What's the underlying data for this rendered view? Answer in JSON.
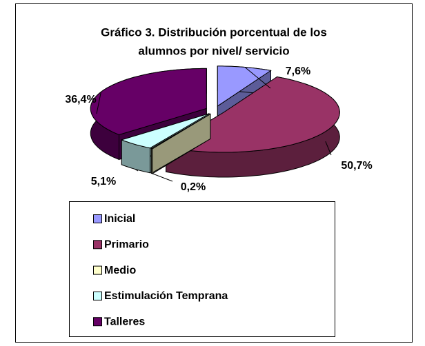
{
  "chart_data": {
    "type": "pie",
    "title": "Gráfico 3. Distribución porcentual de los alumnos por nivel/ servicio",
    "title_lines": [
      "Gráfico 3. Distribución porcentual de los",
      "alumnos por nivel/ servicio"
    ],
    "categories": [
      "Inicial",
      "Primario",
      "Medio",
      "Estimulación Temprana",
      "Talleres"
    ],
    "values": [
      7.6,
      50.7,
      0.2,
      5.1,
      36.4
    ],
    "value_labels": [
      "7,6%",
      "50,7%",
      "0,2%",
      "5,1%",
      "36,4%"
    ],
    "colors": [
      "#9999ff",
      "#993366",
      "#ffffcc",
      "#ccffff",
      "#660066"
    ],
    "legend": "bottom"
  }
}
